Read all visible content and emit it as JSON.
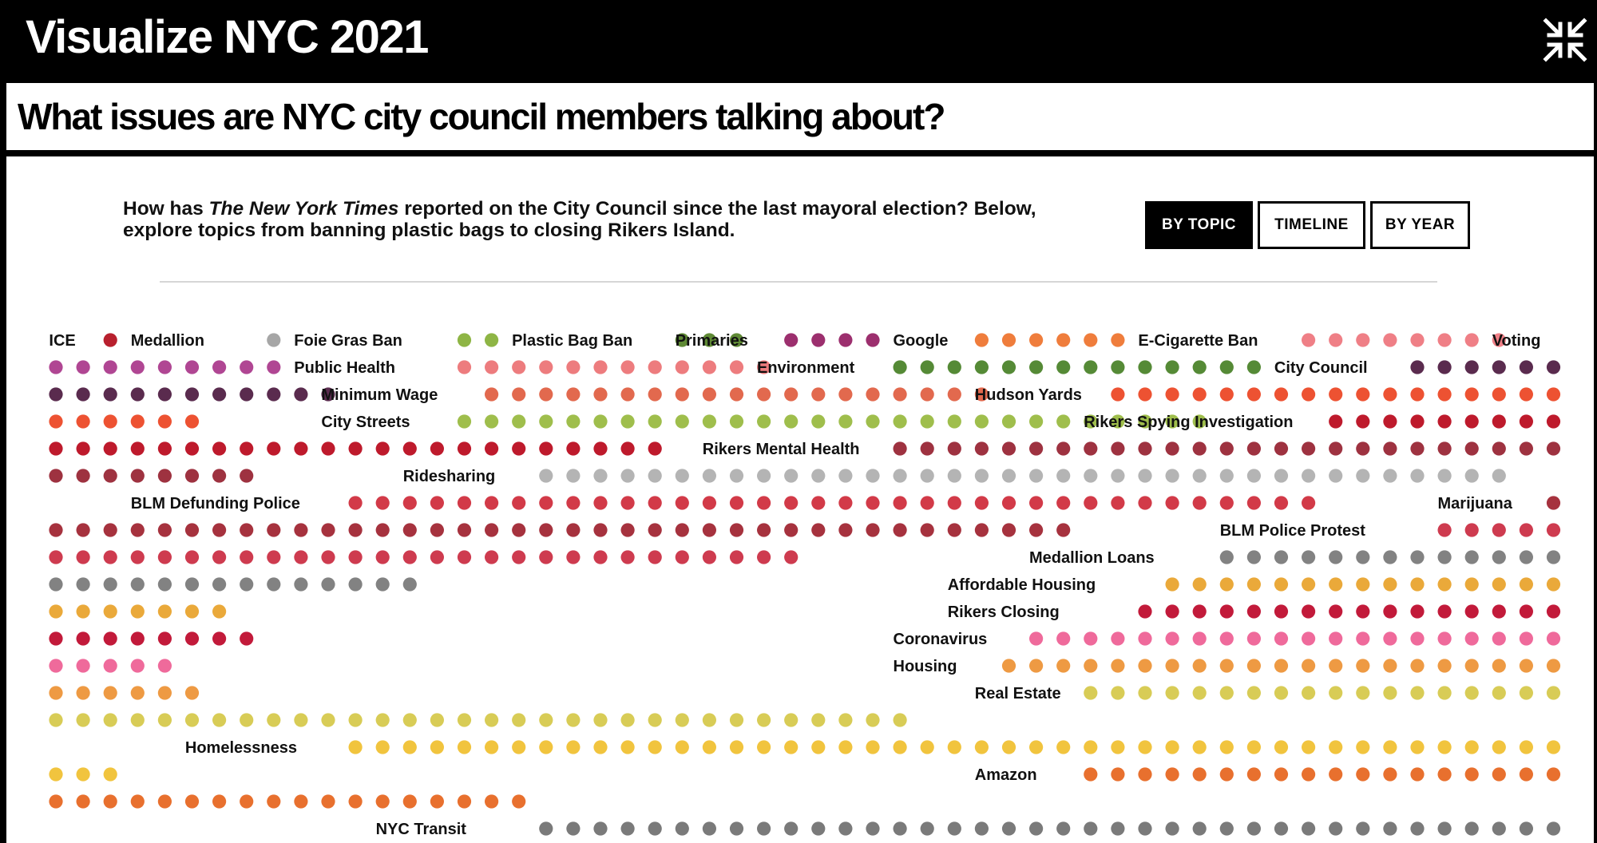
{
  "app": {
    "title": "Visualize NYC 2021",
    "collapse_icon": "collapse-arrows-icon"
  },
  "question": "What issues are NYC city council members talking about?",
  "intro": {
    "before": "How has ",
    "publication": "The New York Times",
    "after": " reported on the City Council since the last mayoral election? Below, explore topics from banning plastic bags to closing Rikers Island."
  },
  "views": [
    {
      "label": "BY TOPIC",
      "active": true
    },
    {
      "label": "TIMELINE",
      "active": false
    },
    {
      "label": "BY YEAR",
      "active": false
    }
  ],
  "chart_data": {
    "type": "dot-grid",
    "topics": [
      {
        "name": "ICE",
        "color": "#b8202e"
      },
      {
        "name": "Medallion",
        "color": "#a6a6a6"
      },
      {
        "name": "Foie Gras Ban",
        "color": "#8eb545"
      },
      {
        "name": "Plastic Bag Ban",
        "color": "#5f8a35"
      },
      {
        "name": "Primaries",
        "color": "#9c2f6e"
      },
      {
        "name": "Google",
        "color": "#ef7d3c"
      },
      {
        "name": "E-Cigarette Ban",
        "color": "#ef7f86"
      },
      {
        "name": "Voting",
        "color": "#b04693"
      },
      {
        "name": "Public Health",
        "color": "#ed7c7e"
      },
      {
        "name": "Environment",
        "color": "#558a36"
      },
      {
        "name": "City Council",
        "color": "#5a2b4e"
      },
      {
        "name": "Minimum Wage",
        "color": "#e2694e"
      },
      {
        "name": "Hudson Yards",
        "color": "#ed5232"
      },
      {
        "name": "City Streets",
        "color": "#9fbe4c"
      },
      {
        "name": "Rikers Spying Investigation",
        "color": "#be1a2c"
      },
      {
        "name": "Rikers Mental Health",
        "color": "#9e3240"
      },
      {
        "name": "Ridesharing",
        "color": "#b4b4b4"
      },
      {
        "name": "BLM Defunding Police",
        "color": "#d23a48"
      },
      {
        "name": "Marijuana",
        "color": "#a6323e"
      },
      {
        "name": "BLM Police Protest",
        "color": "#ce3b4f"
      },
      {
        "name": "Medallion Loans",
        "color": "#828282"
      },
      {
        "name": "Affordable Housing",
        "color": "#eaa93a"
      },
      {
        "name": "Rikers Closing",
        "color": "#c21a3a"
      },
      {
        "name": "Coronavirus",
        "color": "#ef6a9b"
      },
      {
        "name": "Housing",
        "color": "#ee9a43"
      },
      {
        "name": "Real Estate",
        "color": "#d8cc56"
      },
      {
        "name": "Homelessness",
        "color": "#f1c43e"
      },
      {
        "name": "Amazon",
        "color": "#e8702e"
      },
      {
        "name": "NYC Transit",
        "color": "#7a7a7a"
      }
    ]
  }
}
